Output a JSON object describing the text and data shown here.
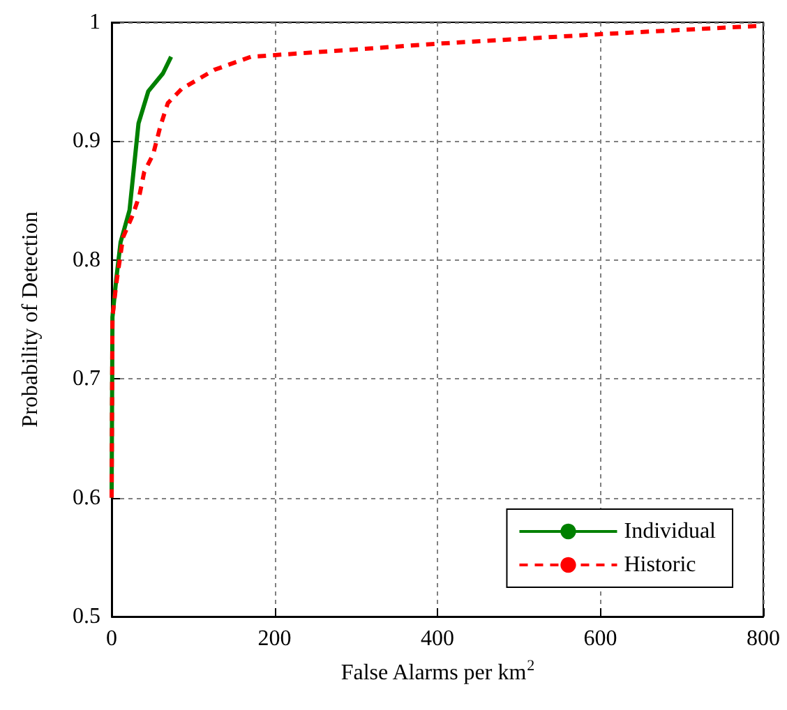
{
  "chart_data": {
    "type": "line",
    "xlabel": "False Alarms per km$^{2}$",
    "ylabel": "Probability of Detection",
    "xlim": [
      0,
      800
    ],
    "xticks": [
      0,
      200,
      400,
      600,
      800
    ],
    "ylim": [
      0.5,
      1
    ],
    "yticks": [
      0.5,
      0.6,
      0.7,
      0.8,
      0.9,
      1
    ],
    "grid": true,
    "legend": "bottom right",
    "marker": "none",
    "series": [
      {
        "name": "Individual",
        "color": "#008000",
        "line_style": "solid",
        "x": [
          0,
          1,
          5.7,
          11,
          22,
          33,
          45,
          63,
          73
        ],
        "values": [
          0.6,
          0.752,
          0.784,
          0.815,
          0.842,
          0.915,
          0.942,
          0.957,
          0.971
        ]
      },
      {
        "name": "Historic",
        "color": "#ff0000",
        "line_style": "dashed",
        "x": [
          0,
          1,
          5.7,
          14,
          26,
          34,
          40,
          51,
          60,
          69,
          86,
          126,
          171,
          317,
          400,
          600,
          794
        ],
        "values": [
          0.6,
          0.752,
          0.78,
          0.819,
          0.838,
          0.854,
          0.874,
          0.889,
          0.913,
          0.932,
          0.944,
          0.96,
          0.971,
          0.978,
          0.982,
          0.99,
          0.997
        ]
      }
    ]
  }
}
